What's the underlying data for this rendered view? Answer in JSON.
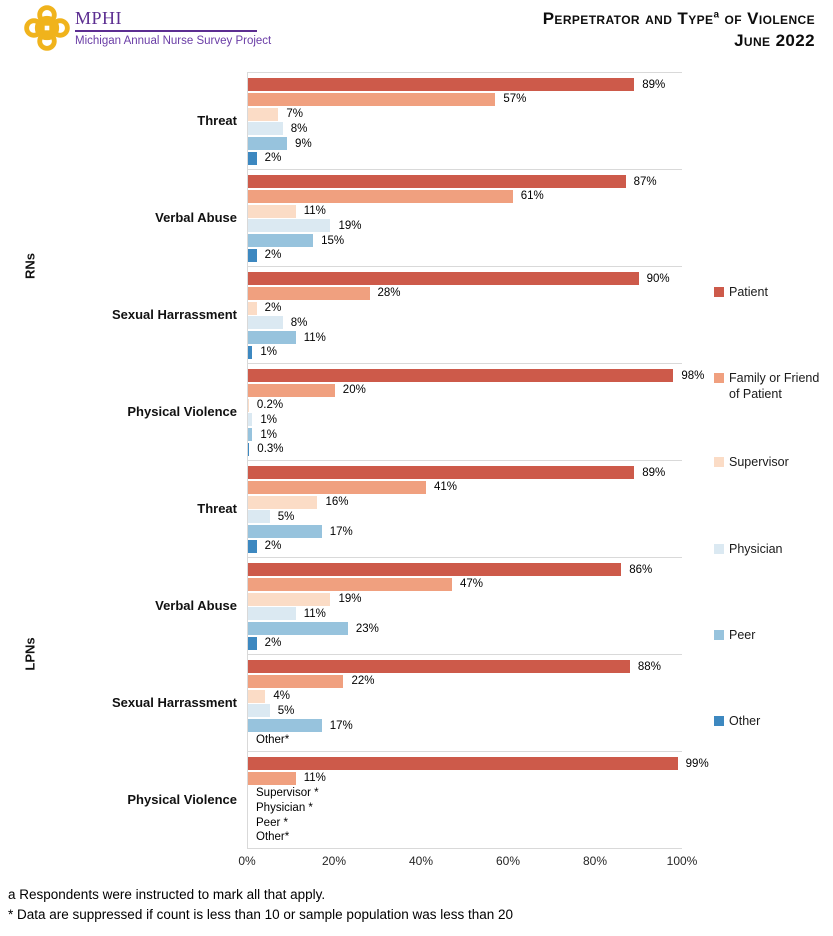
{
  "header": {
    "logo_acronym": "MPHI",
    "logo_subtitle": "Michigan Annual Nurse Survey Project",
    "title_line1a": "Perpetrator and Type",
    "title_sup": "a",
    "title_line1b": " of Violence",
    "title_line2": "June 2022",
    "brand_purple": "#5c2e91",
    "brand_gold": "#f0b31c"
  },
  "footnotes": {
    "note_a": "a Respondents were instructed to mark all that apply.",
    "note_star": "* Data are suppressed if count is less than 10 or sample population was less than 20"
  },
  "chart_data": {
    "type": "bar",
    "orientation": "horizontal",
    "xlim": [
      0,
      100
    ],
    "x_ticks": [
      "0%",
      "20%",
      "40%",
      "60%",
      "80%",
      "100%"
    ],
    "grid": false,
    "legend_position": "right",
    "series": [
      {
        "name": "Patient",
        "color": "#cd5a4a"
      },
      {
        "name": "Family or Friend of Patient",
        "color": "#f0a07f"
      },
      {
        "name": "Supervisor",
        "color": "#fbdcc6"
      },
      {
        "name": "Physician",
        "color": "#dbe9f2"
      },
      {
        "name": "Peer",
        "color": "#97c3dd"
      },
      {
        "name": "Other",
        "color": "#3d88c0"
      }
    ],
    "sections": [
      {
        "label": "RNs",
        "groups": [
          {
            "category": "Threat",
            "values": [
              89,
              57,
              7,
              8,
              9,
              2
            ],
            "labels": [
              "89%",
              "57%",
              "7%",
              "8%",
              "9%",
              "2%"
            ]
          },
          {
            "category": "Verbal Abuse",
            "values": [
              87,
              61,
              11,
              19,
              15,
              2
            ],
            "labels": [
              "87%",
              "61%",
              "11%",
              "19%",
              "15%",
              "2%"
            ]
          },
          {
            "category": "Sexual Harrassment",
            "values": [
              90,
              28,
              2,
              8,
              11,
              1
            ],
            "labels": [
              "90%",
              "28%",
              "2%",
              "8%",
              "11%",
              "1%"
            ]
          },
          {
            "category": "Physical Violence",
            "values": [
              98,
              20,
              0.2,
              1,
              1,
              0.3
            ],
            "labels": [
              "98%",
              "20%",
              "0.2%",
              "1%",
              "1%",
              "0.3%"
            ]
          }
        ]
      },
      {
        "label": "LPNs",
        "groups": [
          {
            "category": "Threat",
            "values": [
              89,
              41,
              16,
              5,
              17,
              2
            ],
            "labels": [
              "89%",
              "41%",
              "16%",
              "5%",
              "17%",
              "2%"
            ]
          },
          {
            "category": "Verbal Abuse",
            "values": [
              86,
              47,
              19,
              11,
              23,
              2
            ],
            "labels": [
              "86%",
              "47%",
              "19%",
              "11%",
              "23%",
              "2%"
            ]
          },
          {
            "category": "Sexual Harrassment",
            "values": [
              88,
              22,
              4,
              5,
              17,
              null
            ],
            "labels": [
              "88%",
              "22%",
              "4%",
              "5%",
              "17%",
              "Other*"
            ]
          },
          {
            "category": "Physical Violence",
            "values": [
              99,
              11,
              null,
              null,
              null,
              null
            ],
            "labels": [
              "99%",
              "11%",
              "Supervisor *",
              "Physician *",
              "Peer *",
              "Other*"
            ]
          }
        ]
      }
    ]
  }
}
